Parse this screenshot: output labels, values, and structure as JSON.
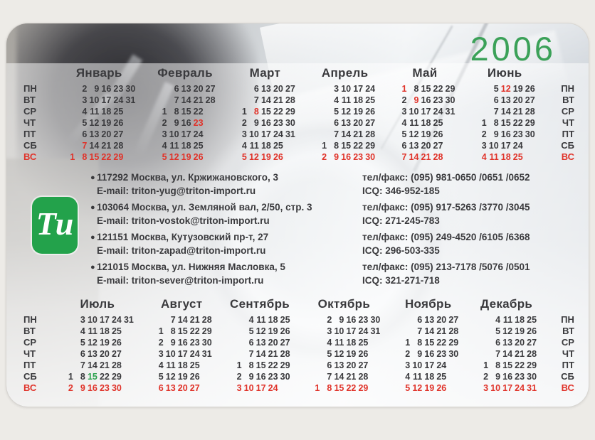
{
  "year": "2006",
  "logo": {
    "text": "Ти"
  },
  "icons": {
    "bullet": "●"
  },
  "colors": {
    "accent_green": "#23a24b",
    "year_green": "#3ba158",
    "holiday_red": "#e0332a",
    "special_green": "#2ca24e",
    "text": "#3a3a3d"
  },
  "weekdays": [
    "ПН",
    "ВТ",
    "СР",
    "ЧТ",
    "ПТ",
    "СБ",
    "ВС"
  ],
  "calendar": {
    "upper": [
      {
        "name": "Январь",
        "rows": [
          [
            "",
            "2",
            "9",
            "16",
            "23",
            "30"
          ],
          [
            "",
            "3",
            "10",
            "17",
            "24",
            "31"
          ],
          [
            "",
            "4",
            "11",
            "18",
            "25",
            ""
          ],
          [
            "",
            "5",
            "12",
            "19",
            "26",
            ""
          ],
          [
            "",
            "6",
            "13",
            "20",
            "27",
            ""
          ],
          [
            "",
            "7r",
            "14",
            "21",
            "28",
            ""
          ],
          [
            "1r",
            "8r",
            "15r",
            "22r",
            "29r",
            ""
          ]
        ]
      },
      {
        "name": "Февраль",
        "rows": [
          [
            "",
            "6",
            "13",
            "20",
            "27"
          ],
          [
            "",
            "7",
            "14",
            "21",
            "28"
          ],
          [
            "1",
            "8",
            "15",
            "22",
            ""
          ],
          [
            "2",
            "9",
            "16",
            "23r",
            ""
          ],
          [
            "3",
            "10",
            "17",
            "24",
            ""
          ],
          [
            "4",
            "11",
            "18",
            "25",
            ""
          ],
          [
            "5r",
            "12r",
            "19r",
            "26r",
            ""
          ]
        ]
      },
      {
        "name": "Март",
        "rows": [
          [
            "",
            "6",
            "13",
            "20",
            "27"
          ],
          [
            "",
            "7",
            "14",
            "21",
            "28"
          ],
          [
            "1",
            "8r",
            "15",
            "22",
            "29"
          ],
          [
            "2",
            "9",
            "16",
            "23",
            "30"
          ],
          [
            "3",
            "10",
            "17",
            "24",
            "31"
          ],
          [
            "4",
            "11",
            "18",
            "25",
            ""
          ],
          [
            "5r",
            "12r",
            "19r",
            "26r",
            ""
          ]
        ]
      },
      {
        "name": "Апрель",
        "rows": [
          [
            "",
            "3",
            "10",
            "17",
            "24"
          ],
          [
            "",
            "4",
            "11",
            "18",
            "25"
          ],
          [
            "",
            "5",
            "12",
            "19",
            "26"
          ],
          [
            "",
            "6",
            "13",
            "20",
            "27"
          ],
          [
            "",
            "7",
            "14",
            "21",
            "28"
          ],
          [
            "1",
            "8",
            "15",
            "22",
            "29"
          ],
          [
            "2r",
            "9r",
            "16r",
            "23r",
            "30r"
          ]
        ]
      },
      {
        "name": "Май",
        "rows": [
          [
            "1r",
            "8",
            "15",
            "22",
            "29"
          ],
          [
            "2",
            "9r",
            "16",
            "23",
            "30"
          ],
          [
            "3",
            "10",
            "17",
            "24",
            "31"
          ],
          [
            "4",
            "11",
            "18",
            "25",
            ""
          ],
          [
            "5",
            "12",
            "19",
            "26",
            ""
          ],
          [
            "6",
            "13",
            "20",
            "27",
            ""
          ],
          [
            "7r",
            "14r",
            "21r",
            "28r",
            ""
          ]
        ]
      },
      {
        "name": "Июнь",
        "rows": [
          [
            "",
            "5",
            "12r",
            "19",
            "26"
          ],
          [
            "",
            "6",
            "13",
            "20",
            "27"
          ],
          [
            "",
            "7",
            "14",
            "21",
            "28"
          ],
          [
            "1",
            "8",
            "15",
            "22",
            "29"
          ],
          [
            "2",
            "9",
            "16",
            "23",
            "30"
          ],
          [
            "3",
            "10",
            "17",
            "24",
            ""
          ],
          [
            "4r",
            "11r",
            "18r",
            "25r",
            ""
          ]
        ]
      }
    ],
    "lower": [
      {
        "name": "Июль",
        "rows": [
          [
            "",
            "3",
            "10",
            "17",
            "24",
            "31"
          ],
          [
            "",
            "4",
            "11",
            "18",
            "25",
            ""
          ],
          [
            "",
            "5",
            "12",
            "19",
            "26",
            ""
          ],
          [
            "",
            "6",
            "13",
            "20",
            "27",
            ""
          ],
          [
            "",
            "7",
            "14",
            "21",
            "28",
            ""
          ],
          [
            "1",
            "8",
            "15g",
            "22",
            "29",
            ""
          ],
          [
            "2r",
            "9r",
            "16r",
            "23r",
            "30r",
            ""
          ]
        ]
      },
      {
        "name": "Август",
        "rows": [
          [
            "",
            "7",
            "14",
            "21",
            "28"
          ],
          [
            "1",
            "8",
            "15",
            "22",
            "29"
          ],
          [
            "2",
            "9",
            "16",
            "23",
            "30"
          ],
          [
            "3",
            "10",
            "17",
            "24",
            "31"
          ],
          [
            "4",
            "11",
            "18",
            "25",
            ""
          ],
          [
            "5",
            "12",
            "19",
            "26",
            ""
          ],
          [
            "6r",
            "13r",
            "20r",
            "27r",
            ""
          ]
        ]
      },
      {
        "name": "Сентябрь",
        "rows": [
          [
            "",
            "4",
            "11",
            "18",
            "25"
          ],
          [
            "",
            "5",
            "12",
            "19",
            "26"
          ],
          [
            "",
            "6",
            "13",
            "20",
            "27"
          ],
          [
            "",
            "7",
            "14",
            "21",
            "28"
          ],
          [
            "1",
            "8",
            "15",
            "22",
            "29"
          ],
          [
            "2",
            "9",
            "16",
            "23",
            "30"
          ],
          [
            "3r",
            "10r",
            "17r",
            "24r",
            ""
          ]
        ]
      },
      {
        "name": "Октябрь",
        "rows": [
          [
            "",
            "2",
            "9",
            "16",
            "23",
            "30"
          ],
          [
            "",
            "3",
            "10",
            "17",
            "24",
            "31"
          ],
          [
            "",
            "4",
            "11",
            "18",
            "25",
            ""
          ],
          [
            "",
            "5",
            "12",
            "19",
            "26",
            ""
          ],
          [
            "",
            "6",
            "13",
            "20",
            "27",
            ""
          ],
          [
            "",
            "7",
            "14",
            "21",
            "28",
            ""
          ],
          [
            "1r",
            "8r",
            "15r",
            "22r",
            "29r",
            ""
          ]
        ]
      },
      {
        "name": "Ноябрь",
        "rows": [
          [
            "",
            "6",
            "13",
            "20",
            "27"
          ],
          [
            "",
            "7",
            "14",
            "21",
            "28"
          ],
          [
            "1",
            "8",
            "15",
            "22",
            "29"
          ],
          [
            "2",
            "9",
            "16",
            "23",
            "30"
          ],
          [
            "3",
            "10",
            "17",
            "24",
            ""
          ],
          [
            "4",
            "11",
            "18",
            "25",
            ""
          ],
          [
            "5r",
            "12r",
            "19r",
            "26r",
            ""
          ]
        ]
      },
      {
        "name": "Декабрь",
        "rows": [
          [
            "",
            "4",
            "11",
            "18",
            "25"
          ],
          [
            "",
            "5",
            "12",
            "19",
            "26"
          ],
          [
            "",
            "6",
            "13",
            "20",
            "27"
          ],
          [
            "",
            "7",
            "14",
            "21",
            "28"
          ],
          [
            "1",
            "8",
            "15",
            "22",
            "29"
          ],
          [
            "2",
            "9",
            "16",
            "23",
            "30"
          ],
          [
            "3r",
            "10r",
            "17r",
            "24r",
            "31r"
          ]
        ]
      }
    ]
  },
  "contacts": [
    {
      "address": "117292 Москва, ул. Кржижановского, 3",
      "email": "E-mail: triton-yug@triton-import.ru",
      "phone": "тел/факс: (095) 981-0650 /0651 /0652",
      "icq": "ICQ: 346-952-185"
    },
    {
      "address": "103064 Москва, ул. Земляной вал, 2/50, стр. 3",
      "email": "E-mail: triton-vostok@triton-import.ru",
      "phone": "тел/факс: (095) 917-5263 /3770 /3045",
      "icq": "ICQ: 271-245-783"
    },
    {
      "address": "121151 Москва, Кутузовский пр-т, 27",
      "email": "E-mail: triton-zapad@triton-import.ru",
      "phone": "тел/факс: (095) 249-4520 /6105 /6368",
      "icq": "ICQ: 296-503-335"
    },
    {
      "address": "121015 Москва, ул. Нижняя Масловка, 5",
      "email": "E-mail: triton-sever@triton-import.ru",
      "phone": "тел/факс: (095) 213-7178 /5076 /0501",
      "icq": "ICQ: 321-271-718"
    }
  ]
}
